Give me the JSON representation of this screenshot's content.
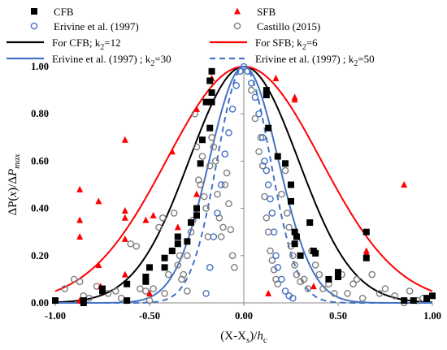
{
  "chart_data": {
    "type": "scatter",
    "xlabel_parts": [
      "(X-X",
      "s",
      ")/",
      "h",
      "c"
    ],
    "ylabel_parts": [
      "ΔP(",
      "x",
      ")/Δ",
      "P",
      "max"
    ],
    "xlim": [
      -1.0,
      1.0
    ],
    "ylim": [
      0.0,
      1.0
    ],
    "x_ticks": [
      -1.0,
      -0.5,
      0.0,
      0.5,
      1.0
    ],
    "x_tick_labels": [
      "-1.00",
      "-0.50",
      "0.00",
      "0.50",
      "1.00"
    ],
    "y_ticks": [
      0.0,
      0.2,
      0.4,
      0.6,
      0.8,
      1.0
    ],
    "y_tick_labels": [
      "0.00",
      "0.20",
      "0.40",
      "0.60",
      "0.80",
      "1.00"
    ],
    "grid": false,
    "legend_position": "top, above plot",
    "legend": [
      {
        "label": "CFB",
        "marker": "square",
        "color": "#000000"
      },
      {
        "label": "SFB",
        "marker": "triangle",
        "color": "#ff0000"
      },
      {
        "label": "Erivine et al. (1997)",
        "marker": "open-circle",
        "color": "#4472c4"
      },
      {
        "label": "Castillo (2015)",
        "marker": "open-circle",
        "color": "#7f7f7f"
      },
      {
        "label_main": "For CFB; k",
        "label_sub": "2",
        "label_tail": "=12",
        "line": "solid",
        "color": "#000000"
      },
      {
        "label_main": "For SFB; k",
        "label_sub": "2",
        "label_tail": "=6",
        "line": "solid",
        "color": "#ff0000"
      },
      {
        "label_main": "Erivine et al. (1997) ; k",
        "label_sub": "2",
        "label_tail": "=30",
        "line": "solid",
        "color": "#4472c4"
      },
      {
        "label_main": "Erivine et al. (1997) ; k",
        "label_sub": "2",
        "label_tail": "=50",
        "line": "dashed",
        "color": "#4472c4"
      }
    ],
    "curves": [
      {
        "name": "For CFB; k2=12",
        "k2": 12,
        "color": "#000000",
        "dash": false
      },
      {
        "name": "For SFB; k2=6",
        "k2": 6,
        "color": "#ff0000",
        "dash": false
      },
      {
        "name": "Erivine et al. (1997) ; k2=30",
        "k2": 30,
        "color": "#4472c4",
        "dash": false
      },
      {
        "name": "Erivine et al. (1997) ; k2=50",
        "k2": 50,
        "color": "#4472c4",
        "dash": true
      }
    ],
    "series": [
      {
        "name": "CFB",
        "marker": "square",
        "color": "#000000",
        "points": [
          [
            -1.0,
            0.01
          ],
          [
            -0.85,
            0.0
          ],
          [
            -0.85,
            0.01
          ],
          [
            -0.75,
            0.05
          ],
          [
            -0.75,
            0.06
          ],
          [
            -0.62,
            0.08
          ],
          [
            -0.62,
            0.01
          ],
          [
            -0.52,
            0.11
          ],
          [
            -0.52,
            0.09
          ],
          [
            -0.5,
            0.15
          ],
          [
            -0.42,
            0.15
          ],
          [
            -0.42,
            0.19
          ],
          [
            -0.38,
            0.22
          ],
          [
            -0.35,
            0.25
          ],
          [
            -0.35,
            0.28
          ],
          [
            -0.3,
            0.26
          ],
          [
            -0.28,
            0.34
          ],
          [
            -0.25,
            0.4
          ],
          [
            -0.25,
            0.37
          ],
          [
            -0.23,
            0.59
          ],
          [
            -0.22,
            0.69
          ],
          [
            -0.2,
            0.85
          ],
          [
            -0.18,
            0.74
          ],
          [
            -0.17,
            0.85
          ],
          [
            -0.17,
            0.89
          ],
          [
            -0.18,
            0.94
          ],
          [
            -0.17,
            0.98
          ],
          [
            0.12,
            0.9
          ],
          [
            0.12,
            0.88
          ],
          [
            0.13,
            0.74
          ],
          [
            0.18,
            0.62
          ],
          [
            0.22,
            0.59
          ],
          [
            0.25,
            0.43
          ],
          [
            0.25,
            0.5
          ],
          [
            0.27,
            0.3
          ],
          [
            0.28,
            0.28
          ],
          [
            0.27,
            0.25
          ],
          [
            0.3,
            0.2
          ],
          [
            0.35,
            0.34
          ],
          [
            0.37,
            0.22
          ],
          [
            0.38,
            0.21
          ],
          [
            0.45,
            0.1
          ],
          [
            0.5,
            0.13
          ],
          [
            0.5,
            0.11
          ],
          [
            0.65,
            0.3
          ],
          [
            0.65,
            0.19
          ],
          [
            0.85,
            0.01
          ],
          [
            0.9,
            0.01
          ],
          [
            0.97,
            0.02
          ],
          [
            1.0,
            0.03
          ]
        ]
      },
      {
        "name": "SFB",
        "marker": "triangle",
        "color": "#ff0000",
        "points": [
          [
            -0.87,
            0.48
          ],
          [
            -0.87,
            0.35
          ],
          [
            -0.87,
            0.28
          ],
          [
            -0.87,
            0.01
          ],
          [
            -0.77,
            0.43
          ],
          [
            -0.77,
            0.16
          ],
          [
            -0.76,
            0.07
          ],
          [
            -0.63,
            0.69
          ],
          [
            -0.63,
            0.39
          ],
          [
            -0.63,
            0.36
          ],
          [
            -0.63,
            0.27
          ],
          [
            -0.63,
            0.12
          ],
          [
            -0.52,
            0.35
          ],
          [
            -0.48,
            0.37
          ],
          [
            -0.5,
            0.04
          ],
          [
            -0.38,
            0.64
          ],
          [
            -0.35,
            0.32
          ],
          [
            -0.25,
            0.46
          ],
          [
            -0.25,
            0.82
          ],
          [
            -0.17,
            0.95
          ],
          [
            0.13,
            0.04
          ],
          [
            0.17,
            0.95
          ],
          [
            0.27,
            0.86
          ],
          [
            0.27,
            0.87
          ],
          [
            0.37,
            0.07
          ],
          [
            0.65,
            0.22
          ],
          [
            0.65,
            0.21
          ],
          [
            0.85,
            0.5
          ]
        ]
      },
      {
        "name": "Erivine et al. (1997)",
        "marker": "open-circle",
        "color": "#4472c4",
        "points": [
          [
            -0.2,
            0.04
          ],
          [
            -0.18,
            0.15
          ],
          [
            -0.16,
            0.28
          ],
          [
            -0.14,
            0.38
          ],
          [
            -0.12,
            0.5
          ],
          [
            -0.1,
            0.63
          ],
          [
            -0.08,
            0.72
          ],
          [
            -0.06,
            0.82
          ],
          [
            -0.04,
            0.92
          ],
          [
            -0.02,
            0.98
          ],
          [
            0.0,
            1.0
          ],
          [
            0.02,
            0.98
          ],
          [
            0.04,
            0.93
          ],
          [
            0.06,
            0.87
          ],
          [
            0.08,
            0.8
          ],
          [
            0.1,
            0.7
          ],
          [
            0.11,
            0.6
          ],
          [
            0.12,
            0.56
          ],
          [
            0.13,
            0.5
          ],
          [
            0.14,
            0.44
          ],
          [
            0.15,
            0.38
          ],
          [
            0.16,
            0.3
          ],
          [
            0.17,
            0.2
          ],
          [
            0.18,
            0.15
          ],
          [
            0.2,
            0.1
          ],
          [
            0.22,
            0.05
          ],
          [
            0.24,
            0.03
          ],
          [
            0.26,
            0.02
          ]
        ]
      },
      {
        "name": "Castillo (2015)",
        "marker": "open-circle",
        "color": "#7f7f7f",
        "points": [
          [
            -0.95,
            0.06
          ],
          [
            -0.9,
            0.1
          ],
          [
            -0.87,
            0.09
          ],
          [
            -0.85,
            0.03
          ],
          [
            -0.82,
            0.02
          ],
          [
            -0.78,
            0.07
          ],
          [
            -0.72,
            0.04
          ],
          [
            -0.68,
            0.05
          ],
          [
            -0.65,
            0.02
          ],
          [
            -0.6,
            0.25
          ],
          [
            -0.57,
            0.24
          ],
          [
            -0.55,
            0.06
          ],
          [
            -0.52,
            0.05
          ],
          [
            -0.5,
            0.01
          ],
          [
            -0.48,
            0.06
          ],
          [
            -0.45,
            0.32
          ],
          [
            -0.43,
            0.36
          ],
          [
            -0.42,
            0.04
          ],
          [
            -0.4,
            0.12
          ],
          [
            -0.38,
            0.22
          ],
          [
            -0.37,
            0.38
          ],
          [
            -0.35,
            0.16
          ],
          [
            -0.34,
            0.2
          ],
          [
            -0.33,
            0.1
          ],
          [
            -0.32,
            0.12
          ],
          [
            -0.3,
            0.2
          ],
          [
            -0.3,
            0.05
          ],
          [
            -0.28,
            0.3
          ],
          [
            -0.27,
            0.35
          ],
          [
            -0.26,
            0.8
          ],
          [
            -0.25,
            0.66
          ],
          [
            -0.24,
            0.52
          ],
          [
            -0.23,
            0.5
          ],
          [
            -0.22,
            0.62
          ],
          [
            -0.21,
            0.45
          ],
          [
            -0.2,
            0.4
          ],
          [
            -0.19,
            0.28
          ],
          [
            -0.18,
            0.58
          ],
          [
            -0.17,
            0.7
          ],
          [
            -0.16,
            0.66
          ],
          [
            -0.15,
            0.6
          ],
          [
            -0.14,
            0.46
          ],
          [
            -0.13,
            0.36
          ],
          [
            -0.12,
            0.28
          ],
          [
            -0.11,
            0.32
          ],
          [
            -0.1,
            0.5
          ],
          [
            -0.09,
            0.55
          ],
          [
            -0.08,
            0.42
          ],
          [
            -0.07,
            0.31
          ],
          [
            -0.06,
            0.2
          ],
          [
            -0.05,
            0.15
          ],
          [
            0.04,
            0.9
          ],
          [
            0.06,
            0.78
          ],
          [
            0.08,
            0.64
          ],
          [
            0.09,
            0.7
          ],
          [
            0.1,
            0.58
          ],
          [
            0.11,
            0.45
          ],
          [
            0.12,
            0.36
          ],
          [
            0.13,
            0.3
          ],
          [
            0.14,
            0.22
          ],
          [
            0.15,
            0.18
          ],
          [
            0.16,
            0.14
          ],
          [
            0.17,
            0.1
          ],
          [
            0.18,
            0.08
          ],
          [
            0.2,
            0.46
          ],
          [
            0.22,
            0.56
          ],
          [
            0.23,
            0.38
          ],
          [
            0.24,
            0.32
          ],
          [
            0.25,
            0.24
          ],
          [
            0.26,
            0.2
          ],
          [
            0.27,
            0.16
          ],
          [
            0.28,
            0.12
          ],
          [
            0.3,
            0.09
          ],
          [
            0.32,
            0.1
          ],
          [
            0.34,
            0.06
          ],
          [
            0.36,
            0.22
          ],
          [
            0.38,
            0.16
          ],
          [
            0.4,
            0.12
          ],
          [
            0.42,
            0.06
          ],
          [
            0.45,
            0.08
          ],
          [
            0.48,
            0.04
          ],
          [
            0.52,
            0.12
          ],
          [
            0.55,
            0.04
          ],
          [
            0.58,
            0.08
          ],
          [
            0.6,
            0.1
          ],
          [
            0.63,
            0.02
          ],
          [
            0.68,
            0.12
          ],
          [
            0.72,
            0.04
          ],
          [
            0.75,
            0.06
          ],
          [
            0.8,
            0.03
          ],
          [
            0.85,
            0.0
          ],
          [
            0.88,
            0.05
          ],
          [
            0.92,
            0.01
          ],
          [
            0.95,
            0.02
          ]
        ]
      }
    ]
  }
}
